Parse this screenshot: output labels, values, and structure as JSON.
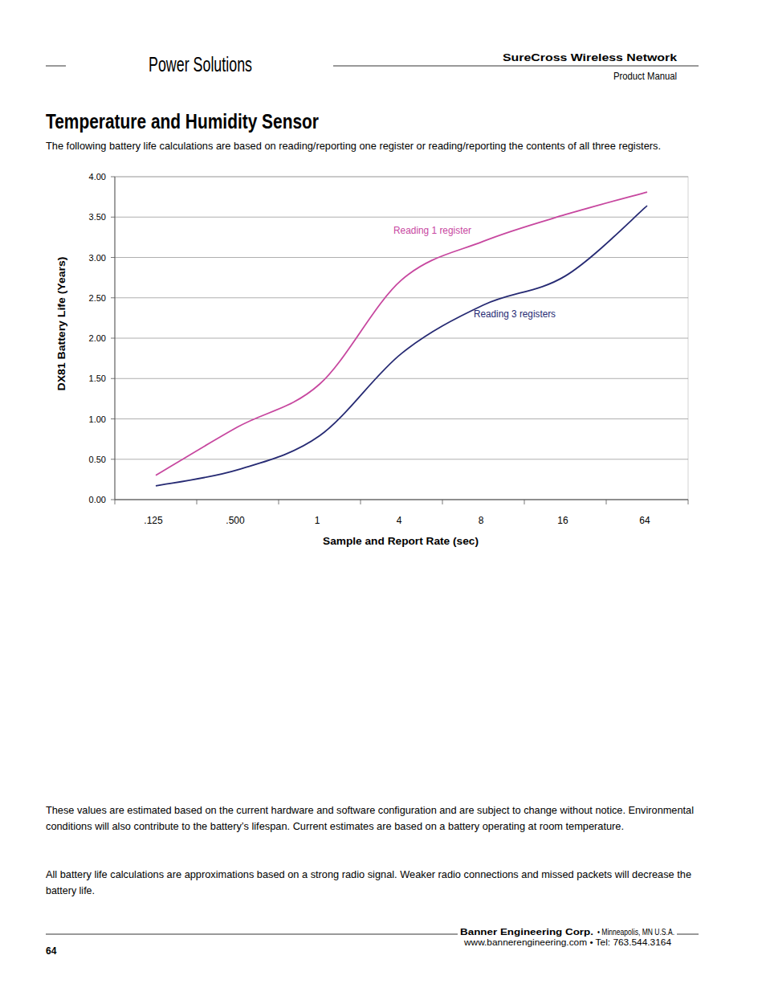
{
  "page": {
    "section": "Power Solutions",
    "product": "SureCross Wireless Network",
    "doc_type": "Product Manual",
    "title": "Temperature and Humidity Sensor",
    "intro": "The following battery life calculations are based on reading/reporting one register or reading/reporting the contents of all three registers.",
    "notes": [
      [
        "These values are estimated based on the current hardware and software configuration and are subject to change without notice. Environmental",
        "conditions will also contribute to the battery’s lifespan. Current estimates are based on a battery operating at room temperature."
      ],
      [
        "All battery life calculations are approximations based on a strong radio signal. Weaker radio connections and missed packets will decrease the",
        "battery life."
      ]
    ],
    "footer": {
      "company": "Banner Engineering Corp.",
      "location": "• Minneapolis, MN U.S.A.",
      "contact": "www.bannerengineering.com  •  Tel: 763.544.3164",
      "page_number": 64
    }
  },
  "chart_data": {
    "type": "line",
    "x_label": "Sample and Report Rate (sec)",
    "y_label": "DX81 Battery Life (Years)",
    "categories": [
      ".125",
      ".500",
      "1",
      "4",
      "8",
      "16",
      "64"
    ],
    "series": [
      {
        "name": "Reading 1 register",
        "color": "#c7479f",
        "values": [
          0.3,
          0.9,
          1.43,
          2.72,
          3.2,
          3.53,
          3.81
        ]
      },
      {
        "name": "Reading 3 registers",
        "color": "#262a73",
        "values": [
          0.17,
          0.37,
          0.79,
          1.81,
          2.41,
          2.77,
          3.64
        ]
      }
    ],
    "ylim": [
      0,
      4
    ],
    "yticks": [
      {
        "value": 0,
        "label": "0.00"
      },
      {
        "value": 0.5,
        "label": "0.50"
      },
      {
        "value": 1,
        "label": "1.00"
      },
      {
        "value": 1.5,
        "label": "1.50"
      },
      {
        "value": 2,
        "label": "2.00"
      },
      {
        "value": 2.5,
        "label": "2.50"
      },
      {
        "value": 3,
        "label": "3.00"
      },
      {
        "value": 3.5,
        "label": "3.50"
      },
      {
        "value": 4,
        "label": "4.00"
      }
    ],
    "grid": true
  }
}
